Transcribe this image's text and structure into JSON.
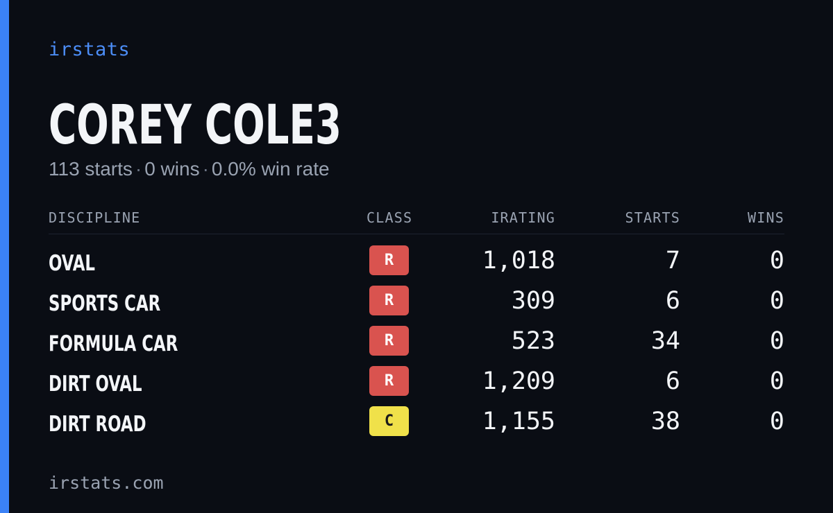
{
  "brand": "irstats",
  "driver": {
    "name": "COREY COLE3",
    "starts_text": "113 starts",
    "wins_text": "0 wins",
    "win_rate_text": "0.0% win rate",
    "separator": "·"
  },
  "table": {
    "headers": {
      "discipline": "DISCIPLINE",
      "class": "CLASS",
      "irating": "IRATING",
      "starts": "STARTS",
      "wins": "WINS"
    },
    "rows": [
      {
        "discipline": "OVAL",
        "class": "R",
        "class_color": "#d9534f",
        "class_text_color": "#ffffff",
        "irating": "1,018",
        "starts": "7",
        "wins": "0"
      },
      {
        "discipline": "SPORTS CAR",
        "class": "R",
        "class_color": "#d9534f",
        "class_text_color": "#ffffff",
        "irating": "309",
        "starts": "6",
        "wins": "0"
      },
      {
        "discipline": "FORMULA CAR",
        "class": "R",
        "class_color": "#d9534f",
        "class_text_color": "#ffffff",
        "irating": "523",
        "starts": "34",
        "wins": "0"
      },
      {
        "discipline": "DIRT OVAL",
        "class": "R",
        "class_color": "#d9534f",
        "class_text_color": "#ffffff",
        "irating": "1,209",
        "starts": "6",
        "wins": "0"
      },
      {
        "discipline": "DIRT ROAD",
        "class": "C",
        "class_color": "#f0e14a",
        "class_text_color": "#1a1a1a",
        "irating": "1,155",
        "starts": "38",
        "wins": "0"
      }
    ]
  },
  "footer": "irstats.com",
  "colors": {
    "accent": "#3b82f6",
    "background": "#0a0d14",
    "brand": "#4c8df6",
    "muted_text": "#9aa3b2",
    "primary_text": "#f3f5f8"
  }
}
